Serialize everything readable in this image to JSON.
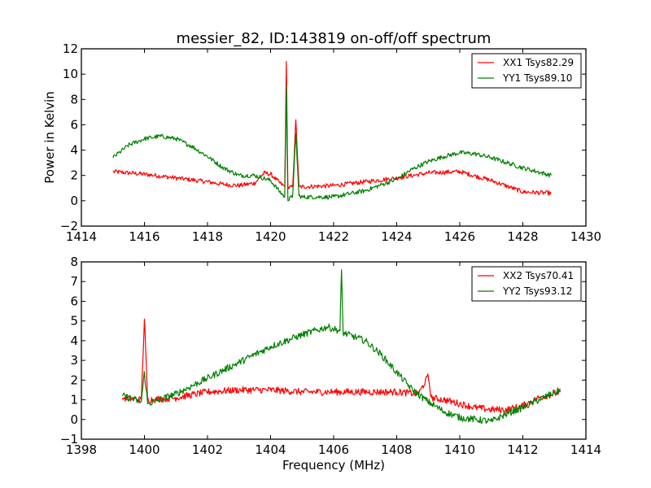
{
  "chart_data": [
    {
      "type": "line",
      "title": "messier_82, ID:143819 on-off/off spectrum",
      "xlabel": "",
      "ylabel": "Power in Kelvin",
      "xlim": [
        1414,
        1430
      ],
      "ylim": [
        -2,
        12
      ],
      "xticks": [
        "1414",
        "1416",
        "1418",
        "1420",
        "1422",
        "1424",
        "1426",
        "1428",
        "1430"
      ],
      "yticks": [
        "−2",
        "0",
        "2",
        "4",
        "6",
        "8",
        "10",
        "12"
      ],
      "xtick_values": [
        1414,
        1416,
        1418,
        1420,
        1422,
        1424,
        1426,
        1428,
        1430
      ],
      "ytick_values": [
        -2,
        0,
        2,
        4,
        6,
        8,
        10,
        12
      ],
      "grid": false,
      "legend_position": "top-right",
      "series": [
        {
          "name": "XX1 Tsys82.29",
          "color": "#ff0000",
          "x": [
            1415.0,
            1416.0,
            1417.0,
            1418.0,
            1418.5,
            1419.0,
            1419.5,
            1419.8,
            1420.0,
            1420.3,
            1420.45,
            1420.5,
            1420.55,
            1420.7,
            1420.8,
            1420.9,
            1421.0,
            1422.0,
            1423.0,
            1424.0,
            1425.0,
            1426.0,
            1427.0,
            1428.0,
            1428.9
          ],
          "y": [
            2.3,
            2.1,
            1.8,
            1.5,
            1.3,
            1.2,
            1.4,
            2.2,
            2.1,
            1.4,
            1.1,
            11.0,
            1.0,
            1.1,
            6.4,
            1.1,
            1.1,
            1.2,
            1.5,
            1.8,
            2.2,
            2.3,
            1.6,
            0.7,
            0.6
          ]
        },
        {
          "name": "YY1 Tsys89.10",
          "color": "#008000",
          "x": [
            1415.0,
            1415.5,
            1416.0,
            1416.5,
            1417.0,
            1417.5,
            1418.0,
            1418.5,
            1419.0,
            1419.5,
            1420.0,
            1420.3,
            1420.45,
            1420.5,
            1420.55,
            1420.7,
            1420.8,
            1420.9,
            1421.0,
            1422.0,
            1423.0,
            1424.0,
            1424.5,
            1425.0,
            1425.5,
            1426.0,
            1426.5,
            1427.0,
            1427.5,
            1428.0,
            1428.9
          ],
          "y": [
            3.4,
            4.4,
            4.9,
            5.1,
            4.9,
            4.3,
            3.5,
            2.6,
            2.0,
            2.0,
            1.6,
            0.7,
            0.3,
            9.0,
            0.0,
            0.4,
            5.3,
            0.4,
            0.3,
            0.3,
            0.8,
            1.7,
            2.5,
            3.1,
            3.5,
            3.8,
            3.7,
            3.4,
            3.0,
            2.6,
            2.0
          ]
        }
      ]
    },
    {
      "type": "line",
      "title": "",
      "xlabel": "Frequency (MHz)",
      "ylabel": "",
      "xlim": [
        1398,
        1414
      ],
      "ylim": [
        -1,
        8
      ],
      "xticks": [
        "1398",
        "1400",
        "1402",
        "1404",
        "1406",
        "1408",
        "1410",
        "1412",
        "1414"
      ],
      "yticks": [
        "−1",
        "0",
        "1",
        "2",
        "3",
        "4",
        "5",
        "6",
        "7",
        "8"
      ],
      "xtick_values": [
        1398,
        1400,
        1402,
        1404,
        1406,
        1408,
        1410,
        1412,
        1414
      ],
      "ytick_values": [
        -1,
        0,
        1,
        2,
        3,
        4,
        5,
        6,
        7,
        8
      ],
      "grid": false,
      "legend_position": "top-right",
      "series": [
        {
          "name": "XX2 Tsys70.41",
          "color": "#ff0000",
          "x": [
            1399.3,
            1399.9,
            1400.0,
            1400.1,
            1401.0,
            1402.0,
            1403.0,
            1404.0,
            1405.0,
            1406.0,
            1407.0,
            1408.0,
            1408.7,
            1409.0,
            1409.1,
            1409.5,
            1410.0,
            1410.5,
            1411.0,
            1411.5,
            1412.0,
            1412.5,
            1413.2
          ],
          "y": [
            1.1,
            1.0,
            5.1,
            1.0,
            1.1,
            1.4,
            1.5,
            1.5,
            1.4,
            1.4,
            1.4,
            1.4,
            1.3,
            2.2,
            1.1,
            1.0,
            0.8,
            0.6,
            0.5,
            0.5,
            0.7,
            1.1,
            1.4
          ]
        },
        {
          "name": "YY2 Tsys93.12",
          "color": "#008000",
          "x": [
            1399.3,
            1399.9,
            1400.0,
            1400.1,
            1401.0,
            1402.0,
            1403.0,
            1404.0,
            1405.0,
            1405.8,
            1406.2,
            1406.25,
            1406.3,
            1407.0,
            1407.5,
            1408.0,
            1408.5,
            1409.0,
            1409.5,
            1410.0,
            1410.5,
            1411.0,
            1411.5,
            1412.0,
            1412.5,
            1413.2
          ],
          "y": [
            1.2,
            0.9,
            2.4,
            0.8,
            1.3,
            2.1,
            2.9,
            3.7,
            4.3,
            4.7,
            4.5,
            7.6,
            4.4,
            4.0,
            3.3,
            2.4,
            1.5,
            0.9,
            0.4,
            0.1,
            0.0,
            -0.1,
            0.3,
            0.6,
            1.0,
            1.5
          ]
        }
      ]
    }
  ]
}
